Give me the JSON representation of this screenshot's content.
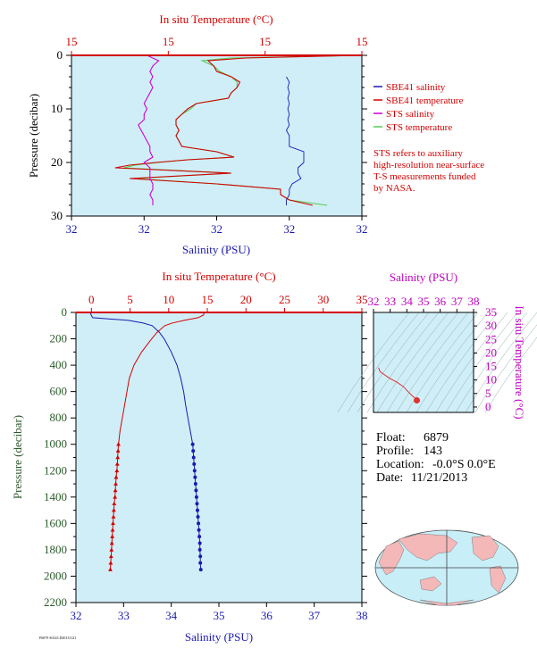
{
  "chart_data": [
    {
      "type": "line",
      "panel": "near-surface profile",
      "top_axis_label": "In situ Temperature (°C)",
      "top_axis_ticks": [
        "15",
        "15",
        "15",
        "15"
      ],
      "bottom_axis_label": "Salinity (PSU)",
      "bottom_axis_ticks": [
        "32",
        "32",
        "32",
        "32",
        "32"
      ],
      "ylabel": "Pressure (decibar)",
      "ylim": [
        30,
        0
      ],
      "y_ticks": [
        "0",
        "10",
        "20",
        "30"
      ],
      "legend_position": "right",
      "legend": [
        {
          "name": "SBE41 salinity",
          "color": "#1a1ab0"
        },
        {
          "name": "SBE41 temperature",
          "color": "#d40000"
        },
        {
          "name": "STS salinity",
          "color": "#d000d0"
        },
        {
          "name": "STS temperature",
          "color": "#55cc55"
        }
      ],
      "note": [
        "STS refers to auxiliary",
        "high-resolution near-surface",
        "T-S measurements funded",
        "by NASA."
      ],
      "series": [
        {
          "name": "SBE41 salinity",
          "pressure": [
            4,
            5,
            6,
            7,
            8,
            9,
            10,
            11,
            12,
            13,
            14,
            15,
            16,
            17,
            18,
            19,
            20,
            21,
            22,
            23,
            24,
            25,
            26,
            27,
            28
          ],
          "position": [
            0.74,
            0.75,
            0.745,
            0.75,
            0.745,
            0.75,
            0.745,
            0.75,
            0.745,
            0.75,
            0.74,
            0.75,
            0.75,
            0.75,
            0.8,
            0.8,
            0.8,
            0.78,
            0.78,
            0.79,
            0.76,
            0.75,
            0.75,
            0.74,
            0.74
          ]
        },
        {
          "name": "SBE41 temperature",
          "pressure": [
            0,
            0.5,
            1,
            2,
            3,
            4,
            5,
            6,
            7,
            8,
            9,
            10,
            11,
            12,
            13,
            14,
            15,
            16,
            17,
            18,
            19,
            19.5,
            20,
            20.5,
            21,
            22,
            23,
            24,
            25,
            26,
            27,
            28
          ],
          "position": [
            0.99,
            0.6,
            0.47,
            0.49,
            0.5,
            0.55,
            0.58,
            0.57,
            0.55,
            0.54,
            0.43,
            0.4,
            0.38,
            0.36,
            0.36,
            0.37,
            0.36,
            0.37,
            0.38,
            0.5,
            0.56,
            0.4,
            0.29,
            0.2,
            0.15,
            0.55,
            0.2,
            0.5,
            0.72,
            0.72,
            0.75,
            0.83
          ]
        },
        {
          "name": "STS salinity",
          "pressure": [
            0,
            1,
            2,
            3,
            4,
            5,
            6,
            7,
            8,
            9,
            10,
            11,
            12,
            13,
            14,
            15,
            16,
            17,
            18,
            19,
            20,
            21,
            22,
            23,
            24,
            25,
            26,
            27,
            28
          ],
          "position": [
            0.26,
            0.3,
            0.28,
            0.27,
            0.28,
            0.27,
            0.28,
            0.27,
            0.26,
            0.25,
            0.26,
            0.25,
            0.25,
            0.23,
            0.24,
            0.25,
            0.26,
            0.27,
            0.27,
            0.28,
            0.25,
            0.27,
            0.27,
            0.27,
            0.28,
            0.28,
            0.27,
            0.28,
            0.28
          ]
        },
        {
          "name": "STS temperature",
          "pressure": [
            0,
            0.5,
            1,
            2,
            3,
            4,
            5,
            6,
            7,
            8,
            9,
            10,
            11,
            12,
            13,
            14,
            15,
            16,
            17,
            18,
            19,
            19.5,
            20,
            20.5,
            21,
            22,
            23,
            24,
            25,
            26,
            27,
            28
          ],
          "position": [
            0.99,
            0.55,
            0.45,
            0.49,
            0.51,
            0.55,
            0.57,
            0.57,
            0.55,
            0.54,
            0.43,
            0.41,
            0.38,
            0.36,
            0.36,
            0.37,
            0.36,
            0.37,
            0.38,
            0.5,
            0.56,
            0.4,
            0.3,
            0.22,
            0.18,
            0.55,
            0.22,
            0.5,
            0.72,
            0.72,
            0.75,
            0.88
          ]
        }
      ]
    },
    {
      "type": "line",
      "panel": "full profile",
      "top_axis_label": "In situ Temperature (°C)",
      "top_axis_ticks": [
        "0",
        "5",
        "10",
        "15",
        "20",
        "25",
        "30",
        "35"
      ],
      "xlim_temperature": [
        -2,
        35
      ],
      "bottom_axis_label": "Salinity (PSU)",
      "bottom_axis_ticks": [
        "32",
        "33",
        "34",
        "35",
        "36",
        "37",
        "38"
      ],
      "xlim_salinity": [
        32,
        38
      ],
      "ylabel": "Pressure (decibar)",
      "ylim": [
        2200,
        0
      ],
      "y_ticks": [
        "0",
        "200",
        "400",
        "600",
        "800",
        "1000",
        "1200",
        "1400",
        "1600",
        "1800",
        "2000",
        "2200"
      ],
      "series": [
        {
          "name": "salinity",
          "color": "#1a1ab0",
          "pressure": [
            0,
            20,
            40,
            60,
            80,
            100,
            150,
            200,
            300,
            400,
            500,
            600,
            700,
            800,
            900,
            1000,
            1050,
            1100,
            1150,
            1200,
            1250,
            1300,
            1350,
            1400,
            1450,
            1500,
            1550,
            1600,
            1650,
            1700,
            1750,
            1800,
            1850,
            1900,
            1950
          ],
          "values": [
            32.3,
            32.32,
            32.35,
            33.1,
            33.4,
            33.6,
            33.75,
            33.85,
            34.0,
            34.12,
            34.2,
            34.26,
            34.3,
            34.35,
            34.4,
            34.45,
            34.46,
            34.47,
            34.48,
            34.49,
            34.5,
            34.51,
            34.52,
            34.53,
            34.54,
            34.55,
            34.56,
            34.57,
            34.58,
            34.59,
            34.6,
            34.6,
            34.61,
            34.61,
            34.62
          ]
        },
        {
          "name": "temperature",
          "color": "#d40000",
          "pressure": [
            0,
            20,
            40,
            60,
            80,
            100,
            150,
            200,
            300,
            400,
            500,
            600,
            700,
            800,
            900,
            1000,
            1050,
            1100,
            1150,
            1200,
            1250,
            1300,
            1350,
            1400,
            1450,
            1500,
            1550,
            1600,
            1650,
            1700,
            1750,
            1800,
            1850,
            1900,
            1950
          ],
          "values": [
            14.6,
            14.5,
            13.8,
            12.0,
            10.5,
            9.5,
            8.5,
            7.8,
            6.5,
            5.5,
            4.9,
            4.6,
            4.3,
            4.0,
            3.7,
            3.5,
            3.45,
            3.4,
            3.35,
            3.3,
            3.2,
            3.15,
            3.1,
            3.05,
            2.95,
            2.9,
            2.85,
            2.8,
            2.75,
            2.7,
            2.65,
            2.6,
            2.55,
            2.5,
            2.45
          ]
        }
      ]
    },
    {
      "type": "line",
      "panel": "T-S diagram",
      "top_axis_label": "Salinity (PSU)",
      "top_axis_ticks": [
        "32",
        "33",
        "34",
        "35",
        "36",
        "37",
        "38"
      ],
      "xlim": [
        32,
        38
      ],
      "right_axis_label": "In situ Temperature (°C)",
      "right_axis_ticks": [
        "0",
        "5",
        "10",
        "15",
        "20",
        "25",
        "30",
        "35"
      ],
      "ylim": [
        -2,
        35
      ],
      "series": [
        {
          "name": "T-S curve",
          "color": "#e03030",
          "x": [
            32.3,
            32.4,
            33.0,
            33.4,
            33.8,
            34.1,
            34.3,
            34.45,
            34.6
          ],
          "y": [
            14.6,
            13.0,
            10.5,
            9.2,
            7.5,
            5.5,
            4.3,
            3.5,
            2.45
          ]
        }
      ]
    }
  ],
  "info": {
    "float_label": "Float:",
    "float_value": "6879",
    "profile_label": "Profile:",
    "profile_value": "143",
    "location_label": "Location:",
    "location_value": "-0.0°S   0.0°E",
    "date_label": "Date:",
    "date_value": "11/21/2013"
  },
  "footer_text": "F6879 S0143 D20131121",
  "colors": {
    "plot_background": "#d0eef8",
    "temperature": "#d40000",
    "salinity": "#1a1ab0",
    "sts_salinity": "#d000d0",
    "sts_temperature": "#55cc55",
    "pressure_axis": "#2a5a2a",
    "ts_axis": "#c000c0",
    "land": "#f4b8b8",
    "ocean": "#c8eef8"
  }
}
